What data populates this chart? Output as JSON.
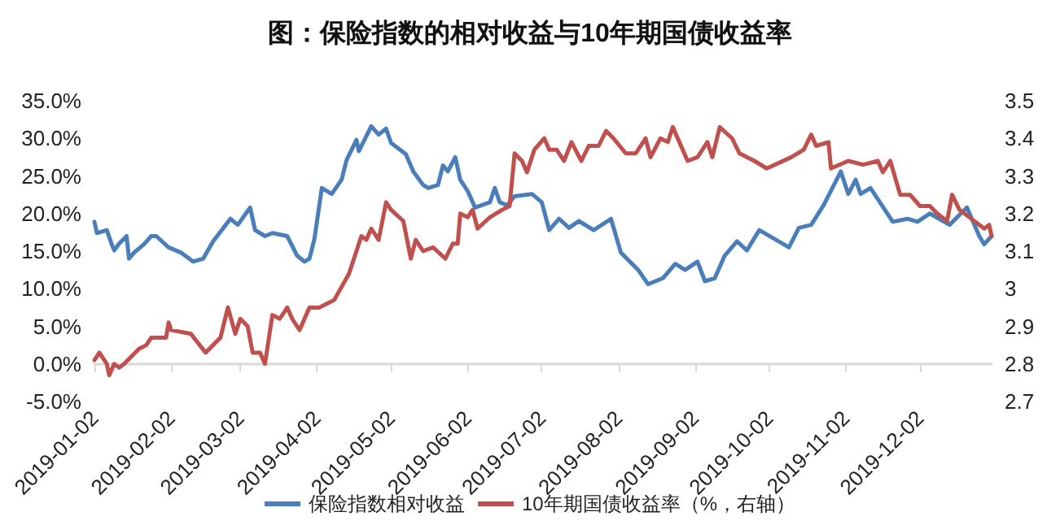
{
  "chart_data": {
    "type": "line",
    "title": "图：保险指数的相对收益与10年期国债收益率",
    "xlim": [
      "2019-01-02",
      "2019-12-31"
    ],
    "xticks": [
      "2019-01-02",
      "2019-02-02",
      "2019-03-02",
      "2019-04-02",
      "2019-05-02",
      "2019-06-02",
      "2019-07-02",
      "2019-08-02",
      "2019-09-02",
      "2019-10-02",
      "2019-11-02",
      "2019-12-02"
    ],
    "ylim": [
      -5,
      35
    ],
    "yticks": [
      {
        "value": -5,
        "label": "-5.0%"
      },
      {
        "value": 0,
        "label": "0.0%"
      },
      {
        "value": 5,
        "label": "5.0%"
      },
      {
        "value": 10,
        "label": "10.0%"
      },
      {
        "value": 15,
        "label": "15.0%"
      },
      {
        "value": 20,
        "label": "20.0%"
      },
      {
        "value": 25,
        "label": "25.0%"
      },
      {
        "value": 30,
        "label": "30.0%"
      },
      {
        "value": 35,
        "label": "35.0%"
      }
    ],
    "y2lim": [
      2.7,
      3.5
    ],
    "y2ticks": [
      2.7,
      2.8,
      2.9,
      3,
      3.1,
      3.2,
      3.3,
      3.4,
      3.5
    ],
    "grid": false,
    "legend": "bottom",
    "marker": "none",
    "line_style": "solid",
    "series": [
      {
        "name": "保险指数相对收益",
        "color": "#4a7ebb",
        "x": [
          "2019-01-02",
          "2019-01-03",
          "2019-01-07",
          "2019-01-09",
          "2019-01-10",
          "2019-01-12",
          "2019-01-15",
          "2019-01-16",
          "2019-01-18",
          "2019-01-22",
          "2019-01-25",
          "2019-01-27",
          "2019-02-01",
          "2019-02-06",
          "2019-02-11",
          "2019-02-15",
          "2019-02-19",
          "2019-02-26",
          "2019-03-01",
          "2019-03-06",
          "2019-03-08",
          "2019-03-12",
          "2019-03-15",
          "2019-03-21",
          "2019-03-25",
          "2019-03-28",
          "2019-03-30",
          "2019-04-01",
          "2019-04-04",
          "2019-04-08",
          "2019-04-12",
          "2019-04-14",
          "2019-04-18",
          "2019-04-19",
          "2019-04-24",
          "2019-04-27",
          "2019-04-30",
          "2019-05-02",
          "2019-05-08",
          "2019-05-11",
          "2019-05-15",
          "2019-05-17",
          "2019-05-21",
          "2019-05-23",
          "2019-05-25",
          "2019-05-28",
          "2019-05-30",
          "2019-06-02",
          "2019-06-05",
          "2019-06-11",
          "2019-06-13",
          "2019-06-15",
          "2019-06-18",
          "2019-06-21",
          "2019-06-28",
          "2019-07-02",
          "2019-07-05",
          "2019-07-09",
          "2019-07-13",
          "2019-07-17",
          "2019-07-23",
          "2019-07-30",
          "2019-08-03",
          "2019-08-10",
          "2019-08-14",
          "2019-08-20",
          "2019-08-25",
          "2019-08-29",
          "2019-09-03",
          "2019-09-06",
          "2019-09-10",
          "2019-09-14",
          "2019-09-19",
          "2019-09-23",
          "2019-09-28",
          "2019-10-10",
          "2019-10-14",
          "2019-10-19",
          "2019-10-24",
          "2019-10-31",
          "2019-11-03",
          "2019-11-06",
          "2019-11-08",
          "2019-11-12",
          "2019-11-21",
          "2019-11-27",
          "2019-12-01",
          "2019-12-06",
          "2019-12-14",
          "2019-12-21",
          "2019-12-26",
          "2019-12-28",
          "2019-12-31"
        ],
        "values": [
          18.9,
          17.4,
          17.8,
          15.9,
          15.1,
          16,
          17,
          14,
          14.8,
          15.9,
          17,
          17,
          15.5,
          14.8,
          13.6,
          14,
          16.3,
          19.3,
          18.5,
          20.8,
          17.8,
          17,
          17.4,
          17,
          14.4,
          13.6,
          14,
          16.6,
          23.4,
          22.6,
          24.5,
          27.1,
          29.8,
          28.3,
          31.6,
          30.5,
          31.3,
          29.4,
          27.9,
          25.6,
          23.8,
          23.4,
          23.8,
          26.4,
          25.6,
          27.5,
          24.5,
          23,
          20.8,
          21.5,
          23.4,
          21.5,
          21.1,
          22.3,
          22.6,
          21.5,
          17.8,
          19.3,
          18.1,
          19,
          17.8,
          19.3,
          14.8,
          12.5,
          10.6,
          11.4,
          13.3,
          12.5,
          13.6,
          11,
          11.4,
          14.4,
          16.3,
          15.1,
          17.8,
          15.5,
          18.1,
          18.5,
          21.1,
          25.6,
          22.6,
          24.5,
          22.6,
          23.4,
          18.9,
          19.3,
          18.9,
          20,
          18.5,
          20.8,
          17,
          15.9,
          17
        ]
      },
      {
        "name": "10年期国债收益率（%，右轴）",
        "color": "#c0504d",
        "axis": "y2",
        "x": [
          "2019-01-02",
          "2019-01-04",
          "2019-01-07",
          "2019-01-08",
          "2019-01-10",
          "2019-01-12",
          "2019-01-14",
          "2019-01-17",
          "2019-01-20",
          "2019-01-23",
          "2019-01-25",
          "2019-01-31",
          "2019-02-01",
          "2019-02-02",
          "2019-02-10",
          "2019-02-16",
          "2019-02-19",
          "2019-02-22",
          "2019-02-25",
          "2019-02-28",
          "2019-03-02",
          "2019-03-05",
          "2019-03-07",
          "2019-03-10",
          "2019-03-12",
          "2019-03-15",
          "2019-03-18",
          "2019-03-21",
          "2019-03-23",
          "2019-03-26",
          "2019-03-30",
          "2019-04-03",
          "2019-04-06",
          "2019-04-09",
          "2019-04-15",
          "2019-04-20",
          "2019-04-22",
          "2019-04-24",
          "2019-04-27",
          "2019-04-30",
          "2019-05-02",
          "2019-05-07",
          "2019-05-10",
          "2019-05-12",
          "2019-05-15",
          "2019-05-19",
          "2019-05-24",
          "2019-05-27",
          "2019-05-29",
          "2019-05-30",
          "2019-06-02",
          "2019-06-04",
          "2019-06-06",
          "2019-06-11",
          "2019-06-16",
          "2019-06-19",
          "2019-06-21",
          "2019-06-24",
          "2019-06-26",
          "2019-06-29",
          "2019-07-03",
          "2019-07-05",
          "2019-07-08",
          "2019-07-11",
          "2019-07-14",
          "2019-07-18",
          "2019-07-21",
          "2019-07-25",
          "2019-07-28",
          "2019-07-31",
          "2019-08-05",
          "2019-08-09",
          "2019-08-13",
          "2019-08-15",
          "2019-08-19",
          "2019-08-22",
          "2019-08-24",
          "2019-08-30",
          "2019-09-03",
          "2019-09-07",
          "2019-09-09",
          "2019-09-12",
          "2019-09-17",
          "2019-09-20",
          "2019-09-26",
          "2019-10-01",
          "2019-10-11",
          "2019-10-16",
          "2019-10-19",
          "2019-10-21",
          "2019-10-26",
          "2019-10-27",
          "2019-11-03",
          "2019-11-09",
          "2019-11-15",
          "2019-11-17",
          "2019-11-20",
          "2019-11-24",
          "2019-11-28",
          "2019-12-02",
          "2019-12-06",
          "2019-12-09",
          "2019-12-13",
          "2019-12-15",
          "2019-12-18",
          "2019-12-22",
          "2019-12-28",
          "2019-12-30",
          "2019-12-31"
        ],
        "values": [
          2.81,
          2.83,
          2.8,
          2.77,
          2.8,
          2.79,
          2.8,
          2.82,
          2.84,
          2.85,
          2.87,
          2.87,
          2.91,
          2.89,
          2.88,
          2.83,
          2.85,
          2.87,
          2.95,
          2.88,
          2.92,
          2.9,
          2.83,
          2.83,
          2.8,
          2.93,
          2.92,
          2.95,
          2.92,
          2.89,
          2.95,
          2.95,
          2.96,
          2.97,
          3.04,
          3.14,
          3.13,
          3.16,
          3.13,
          3.23,
          3.21,
          3.18,
          3.08,
          3.13,
          3.1,
          3.11,
          3.08,
          3.12,
          3.12,
          3.2,
          3.19,
          3.21,
          3.16,
          3.19,
          3.21,
          3.22,
          3.36,
          3.34,
          3.31,
          3.37,
          3.4,
          3.37,
          3.37,
          3.34,
          3.39,
          3.34,
          3.38,
          3.38,
          3.42,
          3.4,
          3.36,
          3.36,
          3.4,
          3.35,
          3.4,
          3.39,
          3.43,
          3.34,
          3.35,
          3.39,
          3.35,
          3.43,
          3.4,
          3.36,
          3.34,
          3.32,
          3.35,
          3.37,
          3.41,
          3.38,
          3.39,
          3.32,
          3.34,
          3.33,
          3.34,
          3.31,
          3.34,
          3.25,
          3.25,
          3.22,
          3.22,
          3.2,
          3.18,
          3.25,
          3.21,
          3.19,
          3.16,
          3.17,
          3.14
        ]
      }
    ]
  }
}
